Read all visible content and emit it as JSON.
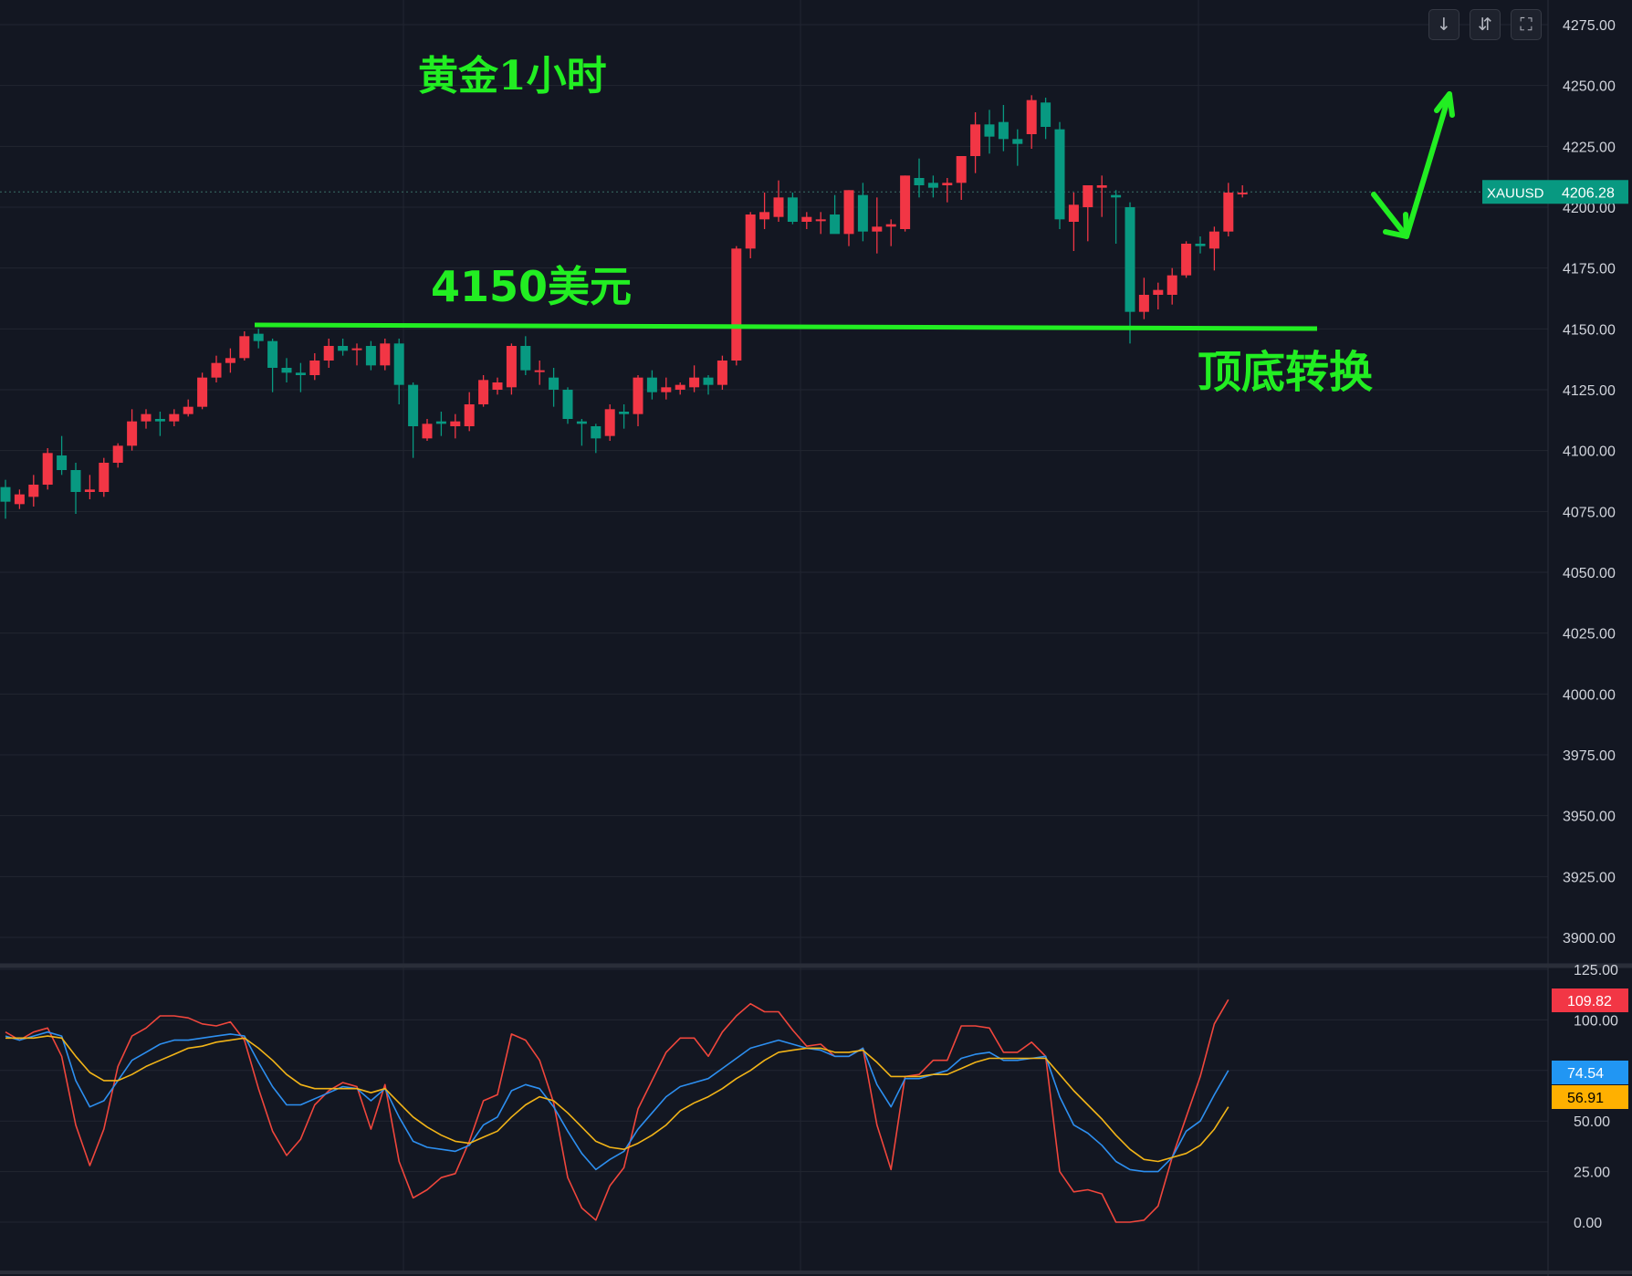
{
  "toolbar": {
    "buttons": [
      {
        "icon": "arrow-down-icon",
        "glyph": "↓"
      },
      {
        "icon": "collapse-icon",
        "glyph": "⇵"
      },
      {
        "icon": "fullscreen-icon",
        "glyph": "⛶"
      }
    ]
  },
  "annotations": {
    "title": "黄金1小时",
    "level_label": "4150美元",
    "reversal_label": "顶底转换",
    "color": "#22ee22"
  },
  "price_badge": {
    "symbol": "XAUUSD",
    "value": "4206.28",
    "color": "#089981"
  },
  "stoch_badges": [
    {
      "value": "109.82",
      "color": "#f23645",
      "text_color": "#ffffff"
    },
    {
      "value": "74.54",
      "color": "#2196f3",
      "text_color": "#ffffff"
    },
    {
      "value": "56.91",
      "color": "#ffb000",
      "text_color": "#000000"
    }
  ],
  "colors": {
    "background": "#131722",
    "grid": "#222631",
    "up": "#f23645",
    "down": "#089981",
    "axis_text": "#d1d4dc",
    "line_red": "#f0463c",
    "line_blue": "#2d8ff0",
    "line_orange": "#f2b418"
  },
  "chart_data": [
    {
      "type": "candlestick",
      "symbol": "XAUUSD",
      "timeframe": "1小时",
      "ylim": [
        3890,
        4290
      ],
      "yticks": [
        "4275.00",
        "4250.00",
        "4225.00",
        "4200.00",
        "4175.00",
        "4150.00",
        "4125.00",
        "4100.00",
        "4075.00",
        "4050.00",
        "4025.00",
        "4000.00",
        "3975.00",
        "3950.00",
        "3925.00",
        "3900.00"
      ],
      "last_price": 4206.28,
      "support_level": 4150,
      "candles": [
        [
          4085,
          4088,
          4072,
          4079
        ],
        [
          4078,
          4084,
          4076,
          4082
        ],
        [
          4081,
          4090,
          4077,
          4086
        ],
        [
          4086,
          4101,
          4084,
          4099
        ],
        [
          4098,
          4106,
          4090,
          4092
        ],
        [
          4092,
          4095,
          4074,
          4083
        ],
        [
          4083,
          4090,
          4080,
          4084
        ],
        [
          4083,
          4097,
          4081,
          4095
        ],
        [
          4095,
          4103,
          4093,
          4102
        ],
        [
          4102,
          4117,
          4100,
          4112
        ],
        [
          4112,
          4117,
          4109,
          4115
        ],
        [
          4113,
          4116,
          4106,
          4112
        ],
        [
          4112,
          4117,
          4110,
          4115
        ],
        [
          4115,
          4121,
          4114,
          4118
        ],
        [
          4118,
          4132,
          4117,
          4130
        ],
        [
          4130,
          4139,
          4128,
          4136
        ],
        [
          4136,
          4142,
          4132,
          4138
        ],
        [
          4138,
          4149,
          4137,
          4147
        ],
        [
          4148,
          4150,
          4142,
          4145
        ],
        [
          4145,
          4146,
          4124,
          4134
        ],
        [
          4134,
          4138,
          4128,
          4132
        ],
        [
          4132,
          4136,
          4124,
          4131
        ],
        [
          4131,
          4140,
          4129,
          4137
        ],
        [
          4137,
          4146,
          4134,
          4143
        ],
        [
          4143,
          4146,
          4139,
          4141
        ],
        [
          4142,
          4144,
          4135,
          4142
        ],
        [
          4143,
          4145,
          4133,
          4135
        ],
        [
          4135,
          4146,
          4133,
          4144
        ],
        [
          4144,
          4146,
          4119,
          4127
        ],
        [
          4127,
          4128,
          4097,
          4110
        ],
        [
          4105,
          4113,
          4104,
          4111
        ],
        [
          4112,
          4116,
          4106,
          4111
        ],
        [
          4110,
          4115,
          4105,
          4112
        ],
        [
          4110,
          4124,
          4108,
          4119
        ],
        [
          4119,
          4131,
          4118,
          4129
        ],
        [
          4125,
          4130,
          4123,
          4128
        ],
        [
          4126,
          4144,
          4123,
          4143
        ],
        [
          4143,
          4147,
          4131,
          4133
        ],
        [
          4133,
          4137,
          4127,
          4133
        ],
        [
          4130,
          4134,
          4118,
          4125
        ],
        [
          4125,
          4126,
          4111,
          4113
        ],
        [
          4112,
          4113,
          4102,
          4111
        ],
        [
          4110,
          4111,
          4099,
          4105
        ],
        [
          4106,
          4119,
          4104,
          4117
        ],
        [
          4116,
          4119,
          4109,
          4115
        ],
        [
          4115,
          4131,
          4110,
          4130
        ],
        [
          4130,
          4133,
          4121,
          4124
        ],
        [
          4124,
          4130,
          4121,
          4126
        ],
        [
          4125,
          4128,
          4123,
          4127
        ],
        [
          4126,
          4135,
          4124,
          4130
        ],
        [
          4130,
          4131,
          4123,
          4127
        ],
        [
          4127,
          4139,
          4125,
          4137
        ],
        [
          4137,
          4184,
          4135,
          4183
        ],
        [
          4183,
          4198,
          4179,
          4197
        ],
        [
          4195,
          4206,
          4191,
          4198
        ],
        [
          4196,
          4211,
          4194,
          4204
        ],
        [
          4204,
          4206,
          4193,
          4194
        ],
        [
          4194,
          4198,
          4191,
          4196
        ],
        [
          4195,
          4198,
          4189,
          4195
        ],
        [
          4197,
          4205,
          4190,
          4189
        ],
        [
          4189,
          4207,
          4184,
          4207
        ],
        [
          4205,
          4210,
          4186,
          4190
        ],
        [
          4190,
          4204,
          4181,
          4192
        ],
        [
          4192,
          4195,
          4184,
          4193
        ],
        [
          4191,
          4213,
          4190,
          4213
        ],
        [
          4212,
          4220,
          4204,
          4209
        ],
        [
          4210,
          4213,
          4204,
          4208
        ],
        [
          4209,
          4212,
          4202,
          4210
        ],
        [
          4210,
          4220,
          4203,
          4221
        ],
        [
          4221,
          4239,
          4214,
          4234
        ],
        [
          4234,
          4240,
          4222,
          4229
        ],
        [
          4235,
          4242,
          4223,
          4228
        ],
        [
          4228,
          4232,
          4217,
          4226
        ],
        [
          4230,
          4246,
          4224,
          4244
        ],
        [
          4243,
          4245,
          4228,
          4233
        ],
        [
          4232,
          4235,
          4191,
          4195
        ],
        [
          4194,
          4206,
          4182,
          4201
        ],
        [
          4200,
          4207,
          4186,
          4209
        ],
        [
          4208,
          4213,
          4196,
          4209
        ],
        [
          4205,
          4207,
          4185,
          4204
        ],
        [
          4200,
          4202,
          4144,
          4157
        ],
        [
          4157,
          4171,
          4154,
          4164
        ],
        [
          4164,
          4169,
          4158,
          4166
        ],
        [
          4164,
          4175,
          4160,
          4172
        ],
        [
          4172,
          4186,
          4171,
          4185
        ],
        [
          4185,
          4188,
          4181,
          4184
        ],
        [
          4183,
          4192,
          4174,
          4190
        ],
        [
          4190,
          4210,
          4188,
          4206
        ],
        [
          4206,
          4209,
          4204,
          4206
        ]
      ]
    },
    {
      "type": "line",
      "indicator": "stochastic",
      "ylim": [
        -10,
        125
      ],
      "yticks": [
        "125.00",
        "100.00",
        "75.00",
        "50.00",
        "25.00",
        "0.00"
      ],
      "series": [
        {
          "values": [
            94,
            90,
            94,
            96,
            82,
            48,
            28,
            46,
            77,
            92,
            96,
            102,
            102,
            101,
            98,
            97,
            99,
            90,
            66,
            45,
            33,
            41,
            58,
            65,
            69,
            67,
            46,
            68,
            30,
            12,
            16,
            22,
            24,
            40,
            60,
            63,
            93,
            90,
            80,
            59,
            22,
            7,
            1,
            18,
            27,
            56,
            70,
            84,
            91,
            91,
            82,
            94,
            102,
            108,
            104,
            104,
            95,
            87,
            88,
            82,
            82,
            86,
            48,
            26,
            72,
            73,
            80,
            80,
            97,
            97,
            96,
            84,
            84,
            89,
            82,
            25,
            15,
            16,
            14,
            0,
            0,
            1,
            8,
            32,
            52,
            72,
            98,
            110
          ]
        },
        {
          "values": [
            92,
            90,
            92,
            94,
            92,
            70,
            57,
            60,
            70,
            80,
            84,
            88,
            90,
            90,
            91,
            92,
            93,
            92,
            79,
            67,
            58,
            58,
            61,
            64,
            67,
            66,
            60,
            66,
            52,
            40,
            37,
            36,
            35,
            38,
            48,
            52,
            65,
            68,
            66,
            57,
            45,
            34,
            26,
            31,
            35,
            46,
            54,
            62,
            67,
            69,
            71,
            76,
            81,
            86,
            88,
            90,
            88,
            86,
            85,
            82,
            82,
            86,
            68,
            57,
            71,
            71,
            73,
            75,
            81,
            83,
            84,
            80,
            80,
            81,
            82,
            62,
            48,
            44,
            38,
            30,
            26,
            25,
            25,
            32,
            45,
            50,
            63,
            75
          ]
        },
        {
          "values": [
            91,
            91,
            91,
            92,
            91,
            82,
            74,
            70,
            70,
            73,
            77,
            80,
            83,
            86,
            87,
            89,
            90,
            91,
            86,
            80,
            73,
            68,
            66,
            66,
            66,
            66,
            64,
            66,
            59,
            52,
            47,
            43,
            40,
            39,
            42,
            45,
            52,
            58,
            62,
            60,
            54,
            47,
            40,
            37,
            36,
            39,
            43,
            48,
            55,
            59,
            62,
            66,
            71,
            75,
            80,
            84,
            85,
            86,
            86,
            84,
            84,
            85,
            79,
            72,
            72,
            72,
            73,
            73,
            76,
            79,
            81,
            81,
            81,
            81,
            81,
            73,
            65,
            58,
            51,
            43,
            36,
            31,
            30,
            32,
            34,
            38,
            46,
            57
          ]
        }
      ]
    }
  ]
}
